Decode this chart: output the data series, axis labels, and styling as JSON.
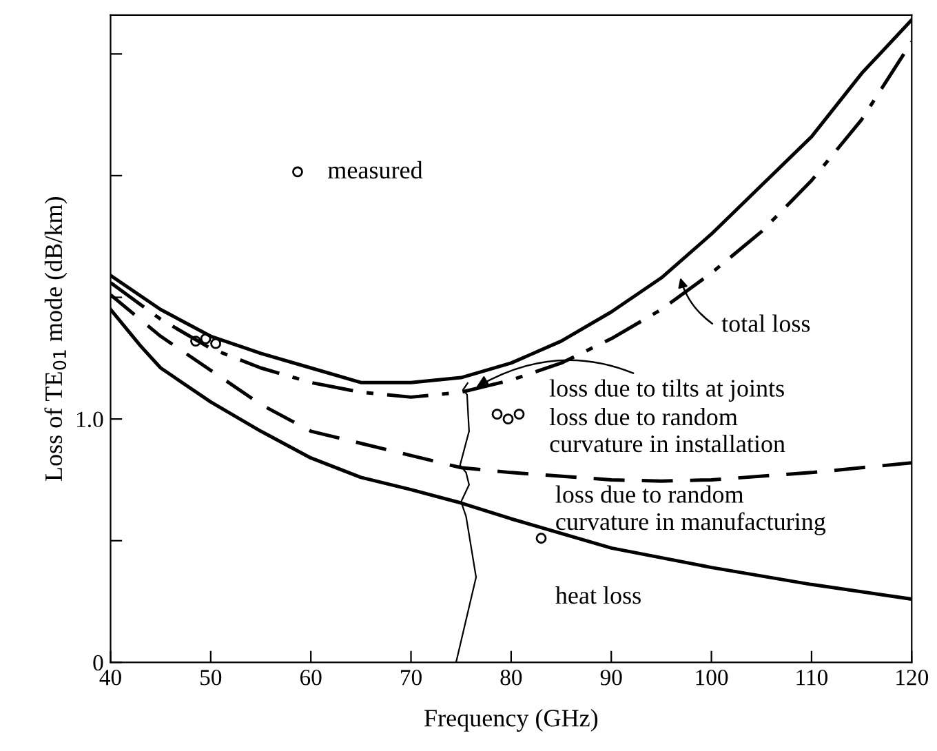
{
  "chart_data": {
    "type": "line",
    "xlabel": "Frequency (GHz)",
    "ylabel": "Loss of TE$_{01}$ mode (dB/km)",
    "xlim": [
      40,
      120
    ],
    "xticks": [
      40,
      50,
      60,
      70,
      80,
      90,
      100,
      110,
      120
    ],
    "ylim": [
      0,
      2.66
    ],
    "yticks": [
      0,
      {
        "value": 0.5,
        "label": null
      },
      {
        "value": 1,
        "label": "1.0"
      },
      {
        "value": 1.5,
        "label": null
      },
      {
        "value": 2,
        "label": null
      },
      {
        "value": 2.5,
        "label": null
      }
    ],
    "grid": false,
    "legend": "top left",
    "series": [
      {
        "color": "#000000",
        "line_style": "solid",
        "x": [
          40,
          45,
          50,
          55,
          60,
          65,
          70,
          75,
          80,
          85,
          90,
          95,
          100,
          105,
          110,
          115,
          120
        ],
        "values": [
          1.59,
          1.45,
          1.34,
          1.27,
          1.21,
          1.15,
          1.15,
          1.17,
          1.23,
          1.32,
          1.44,
          1.58,
          1.76,
          1.96,
          2.16,
          2.42,
          2.64
        ]
      },
      {
        "color": "#000000",
        "line_style": "dashdot",
        "x": [
          40,
          45,
          50,
          55,
          60,
          65,
          70,
          75,
          80,
          85,
          90,
          95,
          100,
          105,
          110,
          115,
          120
        ],
        "values": [
          1.56,
          1.41,
          1.29,
          1.21,
          1.15,
          1.11,
          1.09,
          1.11,
          1.16,
          1.23,
          1.33,
          1.45,
          1.6,
          1.77,
          1.98,
          2.23,
          2.55
        ]
      },
      {
        "color": "#000000",
        "line_style": "dashed",
        "x": [
          40,
          45,
          50,
          55,
          60,
          65,
          70,
          75,
          80,
          90,
          95,
          100,
          110,
          120
        ],
        "values": [
          1.51,
          1.34,
          1.2,
          1.06,
          0.95,
          0.9,
          0.85,
          0.8,
          0.78,
          0.75,
          0.745,
          0.75,
          0.78,
          0.82
        ]
      },
      {
        "color": "#000000",
        "line_style": "solid",
        "x": [
          40,
          43,
          45,
          50,
          55,
          60,
          65,
          70,
          75,
          80,
          90,
          100,
          110,
          120
        ],
        "values": [
          1.45,
          1.3,
          1.21,
          1.07,
          0.95,
          0.84,
          0.76,
          0.71,
          0.655,
          0.59,
          0.47,
          0.39,
          0.32,
          0.26
        ]
      },
      {
        "name": "measured",
        "type": "scatter",
        "marker": "circle",
        "color": "#000000",
        "x": [
          48.5,
          49.5,
          50.5,
          78.6,
          79.7,
          80.8,
          83
        ],
        "values": [
          1.32,
          1.33,
          1.31,
          1.02,
          1.0,
          1.02,
          0.51
        ]
      }
    ],
    "annotations": [
      "total loss",
      {
        "text": "loss due to tilts at joints",
        "x": 76.5,
        "y": 1.13
      },
      "loss due to random\ncurvature in installation",
      "loss due to random\ncurvature in manufacturing",
      "heat loss"
    ]
  }
}
